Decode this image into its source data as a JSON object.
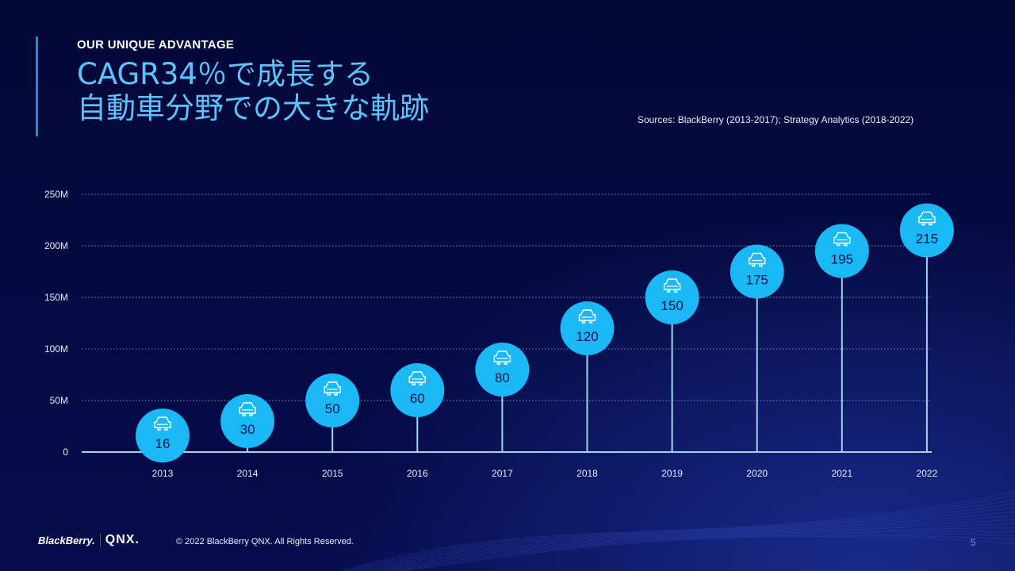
{
  "header": {
    "eyebrow": "OUR UNIQUE ADVANTAGE",
    "title_line1": "CAGR34％で成長する",
    "title_line2": "自動車分野での大きな軌跡",
    "sources": "Sources: BlackBerry (2013-2017); Strategy Analytics (2018-2022)"
  },
  "chart_data": {
    "type": "bar",
    "style": "lollipop with circular markers containing car icon",
    "categories": [
      "2013",
      "2014",
      "2015",
      "2016",
      "2017",
      "2018",
      "2019",
      "2020",
      "2021",
      "2022"
    ],
    "values": [
      16,
      30,
      50,
      60,
      80,
      120,
      150,
      175,
      195,
      215
    ],
    "data_labels": [
      "16",
      "30",
      "50",
      "60",
      "80",
      "120",
      "150",
      "175",
      "195",
      "215"
    ],
    "yticks": [
      "0",
      "50M",
      "100M",
      "150M",
      "200M",
      "250M"
    ],
    "ytick_values": [
      0,
      50,
      100,
      150,
      200,
      250
    ],
    "ylim": [
      0,
      250
    ],
    "grid": "dotted horizontal",
    "marker_icon": "car-icon",
    "colors": {
      "marker": "#1ab8f5",
      "stem": "#9fd4ea",
      "label": "#0a1550",
      "background": "#050a45"
    }
  },
  "footer": {
    "logo_brand": "BlackBerry.",
    "logo_product": "QNX.",
    "copyright": "© 2022 BlackBerry QNX. All Rights Reserved.",
    "page_number": "5"
  }
}
